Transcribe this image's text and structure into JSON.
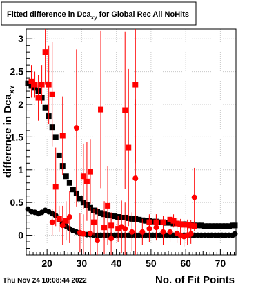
{
  "footer": {
    "timestamp": "Thu Nov 24 10:08:44 2022"
  },
  "chart_data": {
    "type": "scatter",
    "title": "Fitted difference in Dca",
    "title_subscript": "xy",
    "title_suffix": " for Global Rec All NoHits",
    "xlabel": "No. of Fit Points",
    "ylabel": "difference in Dca",
    "ylabel_subscript": "XY",
    "xlim": [
      14,
      74.5
    ],
    "ylim": [
      -0.3,
      3.15
    ],
    "x_ticks": [
      20,
      30,
      40,
      50,
      60,
      70
    ],
    "y_ticks": [
      0,
      0.5,
      1,
      1.5,
      2,
      2.5,
      3
    ],
    "grid": true,
    "colors": {
      "black_series": "#000000",
      "red_series": "#ff0000",
      "grid": "#c8c8c8",
      "frame": "#000000"
    },
    "series": [
      {
        "marker": "square",
        "color": "#000000",
        "points": [
          [
            14.5,
            2.32
          ],
          [
            15.5,
            2.28
          ],
          [
            16.5,
            2.25
          ],
          [
            17.5,
            2.2
          ],
          [
            18.5,
            2.1
          ],
          [
            19.5,
            1.95
          ],
          [
            20.5,
            1.82
          ],
          [
            21.5,
            1.65
          ],
          [
            22.5,
            1.5
          ],
          [
            23.5,
            1.22
          ],
          [
            24.5,
            1.06
          ],
          [
            25.5,
            0.9
          ],
          [
            26.5,
            0.8
          ],
          [
            27.5,
            0.7
          ],
          [
            28.5,
            0.64
          ],
          [
            29.5,
            0.56
          ],
          [
            30.5,
            0.5
          ],
          [
            31.5,
            0.46
          ],
          [
            32.5,
            0.42
          ],
          [
            33.5,
            0.38
          ],
          [
            34.5,
            0.36
          ],
          [
            35.5,
            0.34
          ],
          [
            36.5,
            0.32
          ],
          [
            37.5,
            0.31
          ],
          [
            38.5,
            0.3
          ],
          [
            39.5,
            0.29
          ],
          [
            40.5,
            0.28
          ],
          [
            41.5,
            0.27
          ],
          [
            42.5,
            0.27
          ],
          [
            43.5,
            0.26
          ],
          [
            44.5,
            0.25
          ],
          [
            45.5,
            0.25
          ],
          [
            46.5,
            0.24
          ],
          [
            47.5,
            0.23
          ],
          [
            48.5,
            0.22
          ],
          [
            49.5,
            0.22
          ],
          [
            50.5,
            0.21
          ],
          [
            51.5,
            0.21
          ],
          [
            52.5,
            0.2
          ],
          [
            53.5,
            0.2
          ],
          [
            54.5,
            0.19
          ],
          [
            55.5,
            0.19
          ],
          [
            56.5,
            0.18
          ],
          [
            57.5,
            0.18
          ],
          [
            58.5,
            0.17
          ],
          [
            59.5,
            0.17
          ],
          [
            60.5,
            0.16
          ],
          [
            61.5,
            0.16
          ],
          [
            62.5,
            0.15
          ],
          [
            63.5,
            0.15
          ],
          [
            64.5,
            0.15
          ],
          [
            65.5,
            0.14
          ],
          [
            66.5,
            0.14
          ],
          [
            67.5,
            0.14
          ],
          [
            68.5,
            0.14
          ],
          [
            69.5,
            0.14
          ],
          [
            70.5,
            0.14
          ],
          [
            71.5,
            0.14
          ],
          [
            72.5,
            0.14
          ],
          [
            73.5,
            0.15
          ],
          [
            74.2,
            0.15
          ]
        ]
      },
      {
        "marker": "circle",
        "color": "#000000",
        "points": [
          [
            14.5,
            0.4
          ],
          [
            15.5,
            0.36
          ],
          [
            16.5,
            0.35
          ],
          [
            17.5,
            0.33
          ],
          [
            18.5,
            0.35
          ],
          [
            19.5,
            0.38
          ],
          [
            20.5,
            0.36
          ],
          [
            21.5,
            0.33
          ],
          [
            22.5,
            0.3
          ],
          [
            23.5,
            0.24
          ],
          [
            24.5,
            0.18
          ],
          [
            25.5,
            0.14
          ],
          [
            26.5,
            0.1
          ],
          [
            27.5,
            0.07
          ],
          [
            28.5,
            0.05
          ],
          [
            29.5,
            0.03
          ],
          [
            30.5,
            0.02
          ],
          [
            31.5,
            0.01
          ],
          [
            32.5,
            0.01
          ],
          [
            33.5,
            0.0
          ],
          [
            34.5,
            0.0
          ],
          [
            35.5,
            0.0
          ],
          [
            36.5,
            0.0
          ],
          [
            37.5,
            0.0
          ],
          [
            38.5,
            0.0
          ],
          [
            39.5,
            0.0
          ],
          [
            40.5,
            0.0
          ],
          [
            41.5,
            0.0
          ],
          [
            42.5,
            0.0
          ],
          [
            43.5,
            0.0
          ],
          [
            44.5,
            0.0
          ],
          [
            45.5,
            0.0
          ],
          [
            46.5,
            0.0
          ],
          [
            47.5,
            0.0
          ],
          [
            48.5,
            0.0
          ],
          [
            49.5,
            0.0
          ],
          [
            50.5,
            0.0
          ],
          [
            51.5,
            0.0
          ],
          [
            52.5,
            0.0
          ],
          [
            53.5,
            0.0
          ],
          [
            54.5,
            0.0
          ],
          [
            55.5,
            0.0
          ],
          [
            56.5,
            0.0
          ],
          [
            57.5,
            0.0
          ],
          [
            58.5,
            0.0
          ],
          [
            59.5,
            0.0
          ],
          [
            60.5,
            0.0
          ],
          [
            61.5,
            0.0
          ],
          [
            62.5,
            0.0
          ],
          [
            63.5,
            0.0
          ],
          [
            64.5,
            0.0
          ],
          [
            65.5,
            0.0
          ],
          [
            66.5,
            0.0
          ],
          [
            67.5,
            0.0
          ],
          [
            68.5,
            0.0
          ],
          [
            69.5,
            0.0
          ],
          [
            70.5,
            0.0
          ],
          [
            71.5,
            0.0
          ],
          [
            72.5,
            0.0
          ],
          [
            73.5,
            0.0
          ],
          [
            74.2,
            0.02
          ]
        ]
      },
      {
        "marker": "square",
        "color": "#ff0000",
        "points": [
          [
            15.5,
            2.35,
            0.25
          ],
          [
            16.5,
            2.3,
            0.2
          ],
          [
            17.5,
            2.1,
            0.35
          ],
          [
            18.5,
            2.3,
            0.3
          ],
          [
            19.5,
            2.8,
            0.5
          ],
          [
            20.5,
            2.3,
            0.6
          ],
          [
            21.5,
            2.15,
            0.8
          ],
          [
            22.5,
            0.74,
            0.6
          ],
          [
            23.5,
            0.25,
            0.2
          ],
          [
            24.5,
            1.52,
            0.6
          ],
          [
            25.5,
            0.22,
            0.3
          ],
          [
            30.5,
            0.9,
            0.5
          ],
          [
            31.5,
            0.82,
            0.6
          ],
          [
            32.5,
            0.97,
            0.5
          ],
          [
            33.5,
            0.2,
            0.2
          ],
          [
            35.5,
            1.92,
            1.2
          ],
          [
            36.5,
            0.12,
            0.2
          ],
          [
            37.5,
            0.45,
            0.6
          ],
          [
            38.5,
            0.15,
            0.2
          ],
          [
            40.5,
            0.1,
            0.2
          ],
          [
            42.5,
            1.91,
            1.2
          ],
          [
            43.5,
            1.34,
            1.2
          ],
          [
            45.5,
            2.3,
            1.2
          ],
          [
            49.5,
            0.2,
            0.12
          ],
          [
            51.5,
            0.2,
            0.12
          ],
          [
            53.5,
            0.2,
            0.1
          ],
          [
            55.5,
            0.24,
            0.1
          ],
          [
            56.5,
            0.22,
            0.1
          ],
          [
            57.5,
            0.18,
            0.08
          ],
          [
            58.5,
            0.17,
            0.08
          ],
          [
            59.5,
            0.16,
            0.08
          ],
          [
            60.5,
            0.16,
            0.08
          ],
          [
            61.5,
            0.15,
            0.08
          ],
          [
            62.5,
            0.14,
            0.08
          ]
        ]
      },
      {
        "marker": "circle",
        "color": "#ff0000",
        "points": [
          [
            21.5,
            0.2,
            0.2
          ],
          [
            24.5,
            0.15,
            0.3
          ],
          [
            26.5,
            0.28,
            0.4
          ],
          [
            28.5,
            1.64,
            1.2
          ],
          [
            29.5,
            0.04,
            0.3
          ],
          [
            30.5,
            0.02,
            0.3
          ],
          [
            32.5,
            0.03,
            0.4
          ],
          [
            34.5,
            -0.08,
            0.5
          ],
          [
            36.5,
            0.12,
            0.4
          ],
          [
            38.5,
            -0.05,
            0.3
          ],
          [
            41.5,
            0.13,
            0.4
          ],
          [
            42.5,
            0.1,
            0.4
          ],
          [
            44.5,
            0.05,
            0.3
          ],
          [
            45.5,
            0.87,
            1.2
          ],
          [
            47.5,
            0.05,
            0.2
          ],
          [
            49.5,
            0.1,
            0.2
          ],
          [
            51.5,
            0.12,
            0.2
          ],
          [
            53.5,
            0.05,
            0.2
          ],
          [
            55.5,
            0.05,
            0.15
          ],
          [
            57.5,
            0.03,
            0.15
          ],
          [
            58.5,
            0.0,
            0.15
          ],
          [
            59.5,
            -0.02,
            0.15
          ],
          [
            60.5,
            0.0,
            0.15
          ],
          [
            61.5,
            0.02,
            0.15
          ],
          [
            62.5,
            0.58,
            0.45
          ]
        ]
      }
    ]
  }
}
